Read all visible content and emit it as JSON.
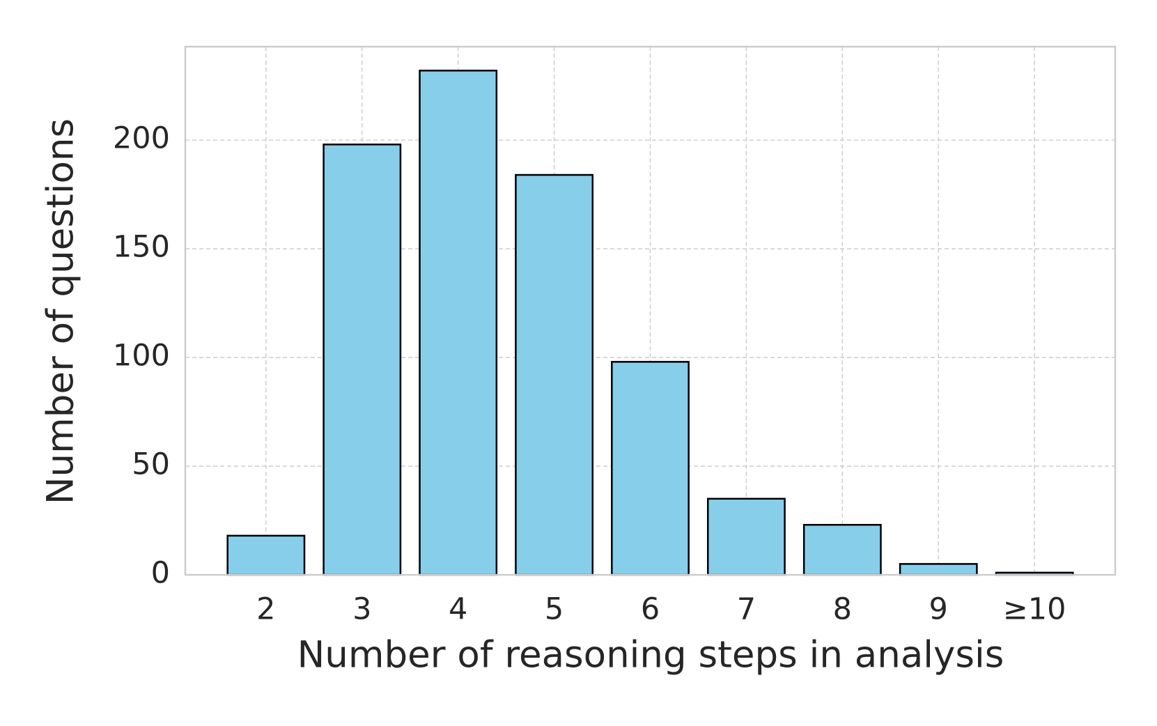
{
  "chart_data": {
    "type": "bar",
    "x_label": "Number of reasoning steps in analysis",
    "y_label": "Number of questions",
    "categories": [
      "2",
      "3",
      "4",
      "5",
      "6",
      "7",
      "8",
      "9",
      "≥10"
    ],
    "values": [
      18,
      198,
      232,
      184,
      98,
      35,
      23,
      5,
      1
    ],
    "color": "#87ceeb",
    "edge_color": "#000000",
    "ylim": [
      0,
      243
    ],
    "yticks": [
      0,
      50,
      100,
      150,
      200
    ],
    "grid": true
  }
}
